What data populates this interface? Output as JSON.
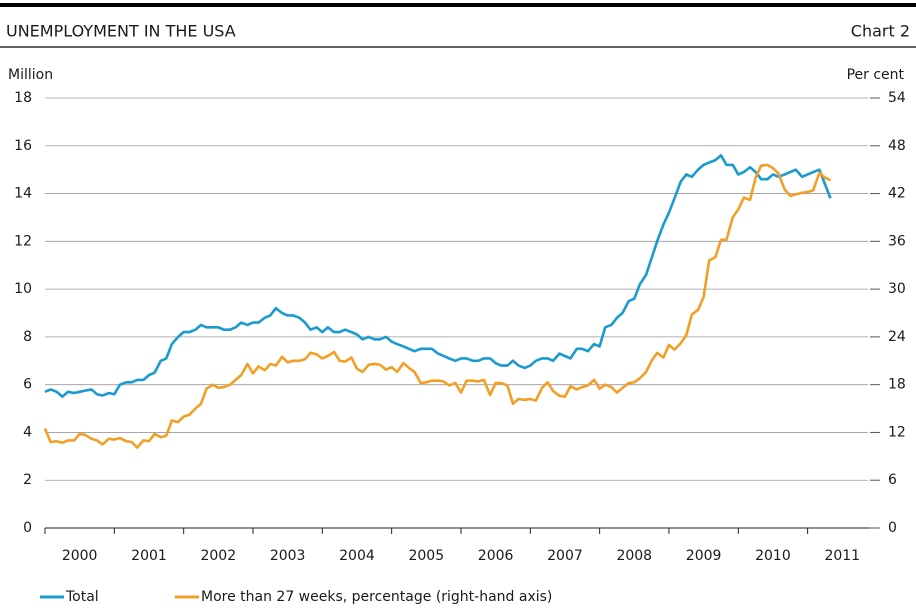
{
  "chart_data": {
    "type": "line",
    "title": "UNEMPLOYMENT IN THE USA",
    "chart_label": "Chart 2",
    "y_label": "Million",
    "y2_label": "Per cent",
    "xlim": [
      2000,
      2011.9
    ],
    "xticks": [
      {
        "value": 2000,
        "label": "2000"
      },
      {
        "value": 2001,
        "label": "2001"
      },
      {
        "value": 2002,
        "label": "2002"
      },
      {
        "value": 2003,
        "label": "2003"
      },
      {
        "value": 2004,
        "label": "2004"
      },
      {
        "value": 2005,
        "label": "2005"
      },
      {
        "value": 2006,
        "label": "2006"
      },
      {
        "value": 2007,
        "label": "2007"
      },
      {
        "value": 2008,
        "label": "2008"
      },
      {
        "value": 2009,
        "label": "2009"
      },
      {
        "value": 2010,
        "label": "2010"
      },
      {
        "value": 2011,
        "label": "2011"
      }
    ],
    "ylim": [
      0,
      18
    ],
    "yticks": [
      0,
      2,
      4,
      6,
      8,
      10,
      12,
      14,
      16,
      18
    ],
    "y2lim": [
      0,
      54
    ],
    "y2ticks": [
      0,
      6,
      12,
      18,
      24,
      30,
      36,
      42,
      48,
      54
    ],
    "grid": true,
    "x": [
      2000,
      2000.08,
      2000.17,
      2000.25,
      2000.33,
      2000.42,
      2000.5,
      2000.58,
      2000.67,
      2000.75,
      2000.83,
      2000.92,
      2001,
      2001.08,
      2001.17,
      2001.25,
      2001.33,
      2001.42,
      2001.5,
      2001.58,
      2001.67,
      2001.75,
      2001.83,
      2001.92,
      2002,
      2002.08,
      2002.17,
      2002.25,
      2002.33,
      2002.42,
      2002.5,
      2002.58,
      2002.67,
      2002.75,
      2002.83,
      2002.92,
      2003,
      2003.08,
      2003.17,
      2003.25,
      2003.33,
      2003.42,
      2003.5,
      2003.58,
      2003.67,
      2003.75,
      2003.83,
      2003.92,
      2004,
      2004.08,
      2004.17,
      2004.25,
      2004.33,
      2004.42,
      2004.5,
      2004.58,
      2004.67,
      2004.75,
      2004.83,
      2004.92,
      2005,
      2005.08,
      2005.17,
      2005.25,
      2005.33,
      2005.42,
      2005.5,
      2005.58,
      2005.67,
      2005.75,
      2005.83,
      2005.92,
      2006,
      2006.08,
      2006.17,
      2006.25,
      2006.33,
      2006.42,
      2006.5,
      2006.58,
      2006.67,
      2006.75,
      2006.83,
      2006.92,
      2007,
      2007.08,
      2007.17,
      2007.25,
      2007.33,
      2007.42,
      2007.5,
      2007.58,
      2007.67,
      2007.75,
      2007.83,
      2007.92,
      2008,
      2008.08,
      2008.17,
      2008.25,
      2008.33,
      2008.42,
      2008.5,
      2008.58,
      2008.67,
      2008.75,
      2008.83,
      2008.92,
      2009,
      2009.08,
      2009.17,
      2009.25,
      2009.33,
      2009.42,
      2009.5,
      2009.58,
      2009.67,
      2009.75,
      2009.83,
      2009.92,
      2010,
      2010.08,
      2010.17,
      2010.25,
      2010.33,
      2010.42,
      2010.5,
      2010.58,
      2010.67,
      2010.75,
      2010.83,
      2010.92,
      2011,
      2011.08,
      2011.17,
      2011.25,
      2011.33
    ],
    "series": [
      {
        "name": "Total",
        "color": "#1a9bd0",
        "axis": "y",
        "values": [
          5.7,
          5.8,
          5.7,
          5.5,
          5.7,
          5.65,
          5.7,
          5.75,
          5.8,
          5.6,
          5.55,
          5.65,
          5.6,
          6.0,
          6.1,
          6.1,
          6.2,
          6.2,
          6.4,
          6.5,
          7.0,
          7.1,
          7.7,
          8.0,
          8.2,
          8.2,
          8.3,
          8.5,
          8.4,
          8.4,
          8.4,
          8.3,
          8.3,
          8.4,
          8.6,
          8.5,
          8.6,
          8.6,
          8.8,
          8.9,
          9.2,
          9.0,
          8.9,
          8.9,
          8.8,
          8.6,
          8.3,
          8.4,
          8.2,
          8.4,
          8.2,
          8.2,
          8.3,
          8.2,
          8.1,
          7.9,
          8.0,
          7.9,
          7.9,
          8.0,
          7.8,
          7.7,
          7.6,
          7.5,
          7.4,
          7.5,
          7.5,
          7.5,
          7.3,
          7.2,
          7.1,
          7.0,
          7.1,
          7.1,
          7.0,
          7.0,
          7.1,
          7.1,
          6.9,
          6.8,
          6.8,
          7.0,
          6.8,
          6.7,
          6.8,
          7.0,
          7.1,
          7.1,
          7.0,
          7.3,
          7.2,
          7.1,
          7.5,
          7.5,
          7.4,
          7.7,
          7.6,
          8.4,
          8.5,
          8.8,
          9.0,
          9.5,
          9.6,
          10.2,
          10.6,
          11.3,
          12.0,
          12.7,
          13.2,
          13.8,
          14.5,
          14.8,
          14.7,
          15.0,
          15.2,
          15.3,
          15.4,
          15.6,
          15.2,
          15.2,
          14.8,
          14.9,
          15.1,
          14.9,
          14.6,
          14.6,
          14.8,
          14.7,
          14.8,
          14.9,
          15.0,
          14.7,
          14.8,
          14.9,
          15.0,
          14.4,
          13.8
        ]
      },
      {
        "name": "More than 27 weeks, percentage (right-hand axis)",
        "color": "#f29f26",
        "axis": "y2",
        "values": [
          12.5,
          10.8,
          10.9,
          10.7,
          11.0,
          11.0,
          11.8,
          11.7,
          11.2,
          11.0,
          10.5,
          11.2,
          11.1,
          11.3,
          10.9,
          10.8,
          10.1,
          11.0,
          10.9,
          11.8,
          11.4,
          11.6,
          13.5,
          13.3,
          14.0,
          14.2,
          15.0,
          15.6,
          17.5,
          18.0,
          17.6,
          17.7,
          18.0,
          18.6,
          19.2,
          20.6,
          19.4,
          20.3,
          19.8,
          20.6,
          20.4,
          21.5,
          20.8,
          21.0,
          21.0,
          21.2,
          22.0,
          21.8,
          21.3,
          21.6,
          22.1,
          21.0,
          20.9,
          21.4,
          20.0,
          19.6,
          20.5,
          20.6,
          20.5,
          19.9,
          20.2,
          19.6,
          20.7,
          20.1,
          19.6,
          18.2,
          18.3,
          18.5,
          18.5,
          18.4,
          17.9,
          18.2,
          17.0,
          18.5,
          18.5,
          18.4,
          18.6,
          16.7,
          18.2,
          18.2,
          17.9,
          15.6,
          16.2,
          16.1,
          16.2,
          16.0,
          17.6,
          18.3,
          17.2,
          16.6,
          16.5,
          17.8,
          17.4,
          17.7,
          17.9,
          18.6,
          17.5,
          18.0,
          17.7,
          17.0,
          17.6,
          18.2,
          18.3,
          18.8,
          19.6,
          21.0,
          22.0,
          21.4,
          23.0,
          22.4,
          23.2,
          24.2,
          26.8,
          27.4,
          29.0,
          33.6,
          34.0,
          36.2,
          36.2,
          39.0,
          40.0,
          41.5,
          41.2,
          44.0,
          45.5,
          45.6,
          45.2,
          44.5,
          42.5,
          41.7,
          41.9,
          42.1,
          42.2,
          42.4,
          44.6,
          44.0,
          43.7
        ]
      }
    ]
  }
}
